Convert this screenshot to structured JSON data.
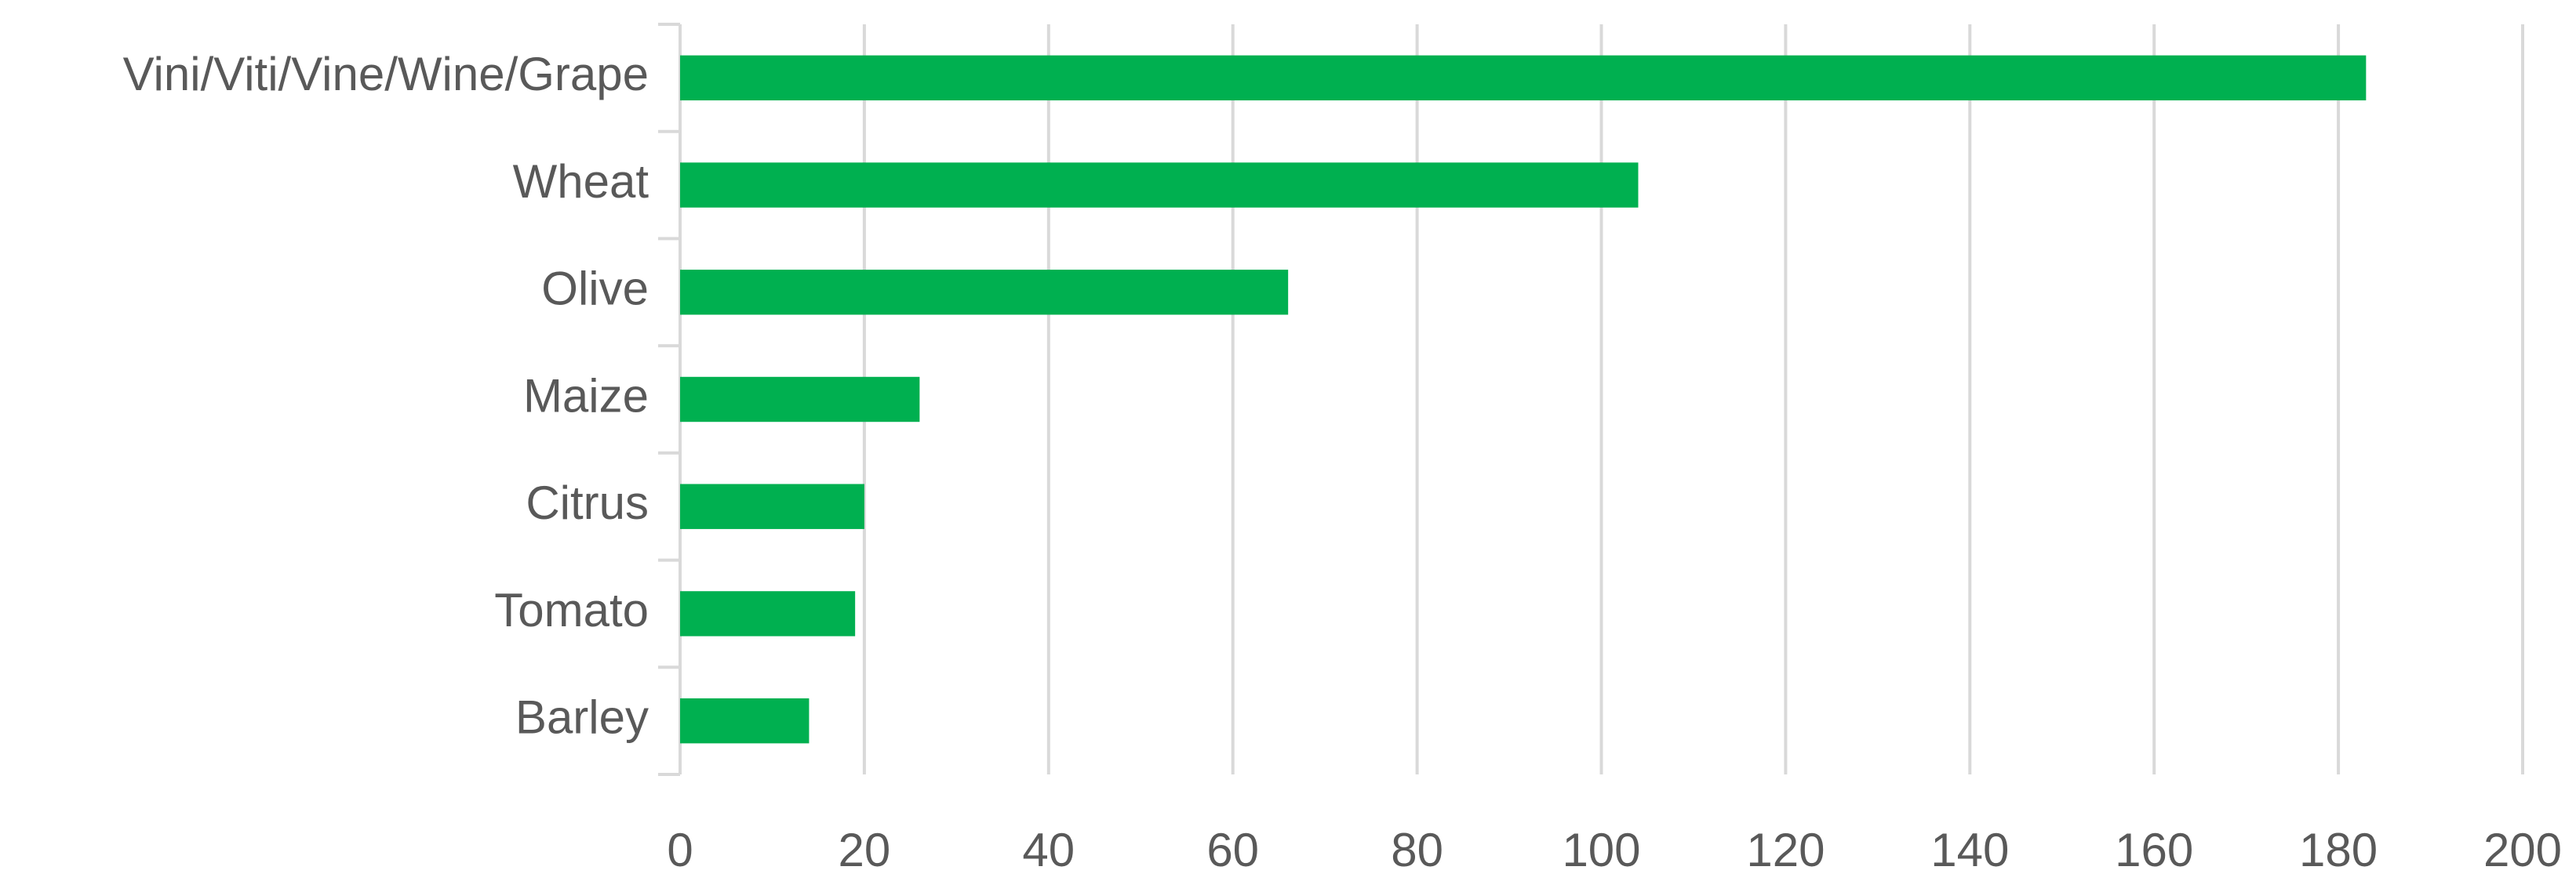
{
  "chart_data": {
    "type": "bar",
    "orientation": "horizontal",
    "categories": [
      "Vini/Viti/Vine/Wine/Grape",
      "Wheat",
      "Olive",
      "Maize",
      "Citrus",
      "Tomato",
      "Barley"
    ],
    "values": [
      183,
      104,
      66,
      26,
      20,
      19,
      14
    ],
    "color": "#00b050",
    "xlim": [
      0,
      200
    ],
    "xticks": [
      0,
      20,
      40,
      60,
      80,
      100,
      120,
      140,
      160,
      180,
      200
    ],
    "grid": true
  }
}
